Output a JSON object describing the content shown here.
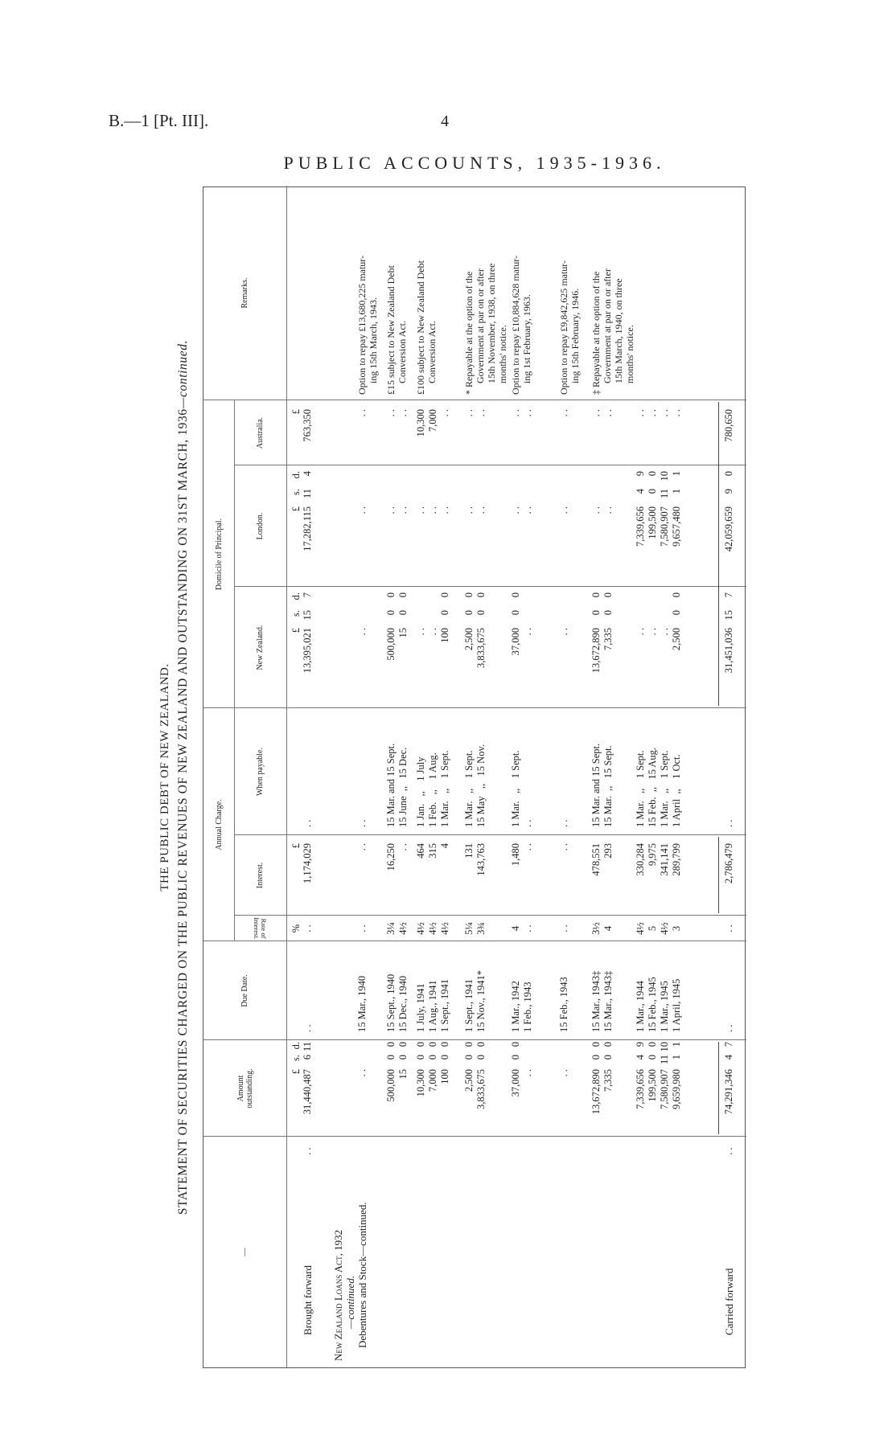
{
  "page": {
    "reference": "B.—1 [Pt. III].",
    "number": "4",
    "heading": "PUBLIC ACCOUNTS, 1935-1936."
  },
  "title": "THE PUBLIC DEBT OF NEW ZEALAND.",
  "subtitle": "STATEMENT OF SECURITIES CHARGED ON THE PUBLIC REVENUES OF NEW ZEALAND AND OUTSTANDING ON 31ST MARCH, 1936",
  "subtitle_suffix": "—continued.",
  "table": {
    "headers": {
      "description": "—",
      "amount": "Amount\noutstanding.",
      "due_date": "Due Date.",
      "rate": "Rate of\nInterest.",
      "annual_charge": "Annual Charge.",
      "interest": "Interest.",
      "when_payable": "When payable.",
      "domicile": "Domicile of Principal.",
      "nz": "New Zealand.",
      "london": "London.",
      "australia": "Australia.",
      "remarks": "Remarks."
    },
    "units": {
      "amount": {
        "pounds": "£",
        "s": "s.",
        "d": "d."
      },
      "rate": "%",
      "interest": "£",
      "nz": {
        "pounds": "£",
        "s": "s.",
        "d": "d."
      },
      "london": {
        "pounds": "£",
        "s": "s.",
        "d": "d."
      },
      "aus": "£"
    },
    "section": {
      "act": "New Zealand Loans Act, 1932",
      "act_continued": "—continued.",
      "sub": "Debentures and Stock—continued."
    },
    "rows": [
      {
        "desc": "Brought forward",
        "leader": ". .",
        "amount": {
          "pounds": "31,440,487",
          "s": "6",
          "d": "11"
        },
        "due": ". .",
        "rate": ". .",
        "interest": "1,174,029",
        "when": ". .",
        "nz": {
          "pounds": "13,395,021",
          "s": "15",
          "d": "7"
        },
        "london": {
          "pounds": "17,282,115",
          "s": "11",
          "d": "4"
        },
        "aus": "763,350",
        "remarks": ""
      },
      {
        "amount": {
          "pounds": ". .",
          "s": "",
          "d": ""
        },
        "due": "15 Mar., 1940",
        "rate": ". .",
        "interest": ". .",
        "when": ". .",
        "nz": {
          "pounds": ". .",
          "s": "",
          "d": ""
        },
        "london": {
          "pounds": ". .",
          "s": "",
          "d": ""
        },
        "aus": ". .",
        "remarks": "Option to repay £13,680,225 matur-\ning 15th March, 1943."
      },
      {
        "amount": {
          "pounds": "500,000\n15",
          "s": "0\n0",
          "d": "0\n0"
        },
        "due": "15 Sept., 1940\n15 Dec., 1940",
        "rate": "3¼\n4½",
        "interest": "16,250\n. .",
        "when": "15 Mar. and 15 Sept.\n15 June  ,,   15 Dec.",
        "nz": {
          "pounds": "500,000\n15",
          "s": "0\n0",
          "d": "0\n0"
        },
        "london": {
          "pounds": ". .\n. .",
          "s": "",
          "d": ""
        },
        "aus": ". .\n. .",
        "remarks": "£15 subject to New Zealand Debt\nConversion Act."
      },
      {
        "amount": {
          "pounds": "10,300\n7,000\n100",
          "s": "0\n0\n0",
          "d": "0\n0\n0"
        },
        "due": "1 July, 1941\n1 Aug., 1941\n1 Sept., 1941",
        "rate": "4½\n4½\n4½",
        "interest": "464\n315\n4",
        "when": "1 Jan.   ,,    1 July\n1 Feb.   ,,    1 Aug.\n1 Mar.   ,,    1 Sept.",
        "nz": {
          "pounds": ". .\n. .\n100",
          "s": "\n\n0",
          "d": "\n\n0"
        },
        "london": {
          "pounds": ". .\n. .\n. .",
          "s": "",
          "d": ""
        },
        "aus": "10,300\n7,000\n. .",
        "remarks": "£100 subject to New Zealand Debt\nConversion Act."
      },
      {
        "amount": {
          "pounds": "2,500\n3,833,675",
          "s": "0\n0",
          "d": "0\n0"
        },
        "due": "1 Sept., 1941\n15 Nov., 1941*",
        "rate": "5¼\n3¾",
        "interest": "131\n143,763",
        "when": "1 Mar.   ,,    1 Sept.\n15 May   ,,   15 Nov.",
        "nz": {
          "pounds": "2,500\n3,833,675",
          "s": "0\n0",
          "d": "0\n0"
        },
        "london": {
          "pounds": ". .\n. .",
          "s": "",
          "d": ""
        },
        "aus": ". .\n. .",
        "remarks": "* Repayable at the option of the\nGovernment at par on or after\n15th November, 1938, on three\nmonths' notice."
      },
      {
        "amount": {
          "pounds": "37,000\n. .",
          "s": "0",
          "d": "0"
        },
        "due": "1 Mar., 1942\n1 Feb., 1943",
        "rate": "4\n. .",
        "interest": "1,480\n. .",
        "when": "1 Mar.   ,,    1 Sept.\n. .",
        "nz": {
          "pounds": "37,000\n. .",
          "s": "0",
          "d": "0"
        },
        "london": {
          "pounds": ". .\n. .",
          "s": "",
          "d": ""
        },
        "aus": ". .\n. .",
        "remarks": "Option to repay £10,884,628 matur-\ning 1st February, 1963."
      },
      {
        "amount": {
          "pounds": ". .",
          "s": "",
          "d": ""
        },
        "due": "15 Feb., 1943",
        "rate": ". .",
        "interest": ". .",
        "when": ". .",
        "nz": {
          "pounds": ". .",
          "s": "",
          "d": ""
        },
        "london": {
          "pounds": ". .",
          "s": "",
          "d": ""
        },
        "aus": ". .",
        "remarks": "Option to repay £9,842,625 matur-\ning 15th February, 1946."
      },
      {
        "amount": {
          "pounds": "13,672,890\n7,335",
          "s": "0\n0",
          "d": "0\n0"
        },
        "due": "15 Mar., 1943‡\n15 Mar., 1943‡",
        "rate": "3½\n4",
        "interest": "478,551\n293",
        "when": "15 Mar. and 15 Sept.\n15 Mar.  ,,   15 Sept.",
        "nz": {
          "pounds": "13,672,890\n7,335",
          "s": "0\n0",
          "d": "0\n0"
        },
        "london": {
          "pounds": ". .\n. .",
          "s": "",
          "d": ""
        },
        "aus": ". .\n. .",
        "remarks": "‡ Repayable at the option of the\nGovernment at par on or after\n15th March, 1940, on three\nmonths' notice."
      },
      {
        "amount": {
          "pounds": "7,339,656\n199,500\n7,580,907\n9,659,980",
          "s": "4\n0\n11\n1",
          "d": "9\n0\n10\n1"
        },
        "due": "1 Mar., 1944\n15 Feb., 1945\n1 Mar., 1945\n1 April, 1945",
        "rate": "4½\n5\n4½\n3",
        "interest": "330,284\n9,975\n341,141\n289,799",
        "when": "1 Mar.   ,,    1 Sept.\n15 Feb.  ,,   15 Aug.\n1 Mar.   ,,    1 Sept.\n1 April  ,,    1 Oct.",
        "nz": {
          "pounds": ". .\n. .\n. .\n2,500",
          "s": "\n\n\n0",
          "d": "\n\n\n0"
        },
        "london": {
          "pounds": "7,339,656\n199,500\n7,580,907\n9,657,480",
          "s": "4\n0\n11\n1",
          "d": "9\n0\n10\n1"
        },
        "aus": ". .\n. .\n. .\n. .",
        "remarks": ""
      },
      {
        "desc": "Carried forward",
        "leader": ". .",
        "amount": {
          "pounds": "74,291,346",
          "s": "4",
          "d": "7"
        },
        "due": ". .",
        "rate": ". .",
        "interest": "2,786,479",
        "when": ". .",
        "nz": {
          "pounds": "31,451,036",
          "s": "15",
          "d": "7"
        },
        "london": {
          "pounds": "42,059,659",
          "s": "9",
          "d": "0"
        },
        "aus": "780,650",
        "remarks": ""
      }
    ]
  }
}
